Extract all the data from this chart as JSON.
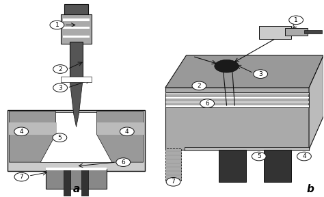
{
  "bg_color": "#ffffff",
  "fig_width": 4.74,
  "fig_height": 2.88,
  "dpi": 100,
  "label_a": "a",
  "label_b": "b",
  "gray": "#aaaaaa",
  "dgray": "#555555",
  "lgray": "#dddddd",
  "black": "#111111",
  "white": "#ffffff",
  "mgray": "#888888"
}
